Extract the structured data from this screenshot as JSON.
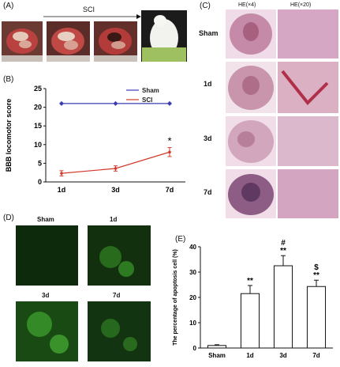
{
  "panels": {
    "A": {
      "label": "(A)",
      "arrow_label": "SCI"
    },
    "B": {
      "label": "(B)"
    },
    "C": {
      "label": "(C)",
      "col_headers": [
        "HE(×4)",
        "HE(×20)"
      ],
      "rows": [
        "Sham",
        "1d",
        "3d",
        "7d"
      ]
    },
    "D": {
      "label": "(D)",
      "tiles": [
        "Sham",
        "1d",
        "3d",
        "7d"
      ]
    },
    "E": {
      "label": "(E)"
    }
  },
  "chart_data": [
    {
      "type": "line",
      "ylabel": "BBB locomotor score",
      "categories": [
        "1d",
        "3d",
        "7d"
      ],
      "yticks": [
        "0",
        "5",
        "10",
        "15",
        "20",
        "25"
      ],
      "ylim": [
        0,
        25
      ],
      "legend_placement": "top-right",
      "series": [
        {
          "name": "Sham",
          "values": [
            21,
            21,
            21
          ],
          "color": "#3b3bb0"
        },
        {
          "name": "SCI",
          "values": [
            2.3,
            3.6,
            8.0
          ],
          "errors": [
            0.7,
            0.7,
            1.2
          ],
          "color": "#d23a2a"
        }
      ],
      "annotations": [
        {
          "category": "7d",
          "text": "*"
        }
      ]
    },
    {
      "type": "bar",
      "ylabel": "The percentage of apoptosis cell (%)",
      "categories": [
        "Sham",
        "1d",
        "3d",
        "7d"
      ],
      "values": [
        1.0,
        21.5,
        32.5,
        24.3
      ],
      "errors": [
        0.3,
        3.2,
        4.0,
        2.5
      ],
      "yticks": [
        "0",
        "10",
        "20",
        "30",
        "40"
      ],
      "ylim": [
        0,
        40
      ],
      "annotations": [
        {
          "category": "1d",
          "text": [
            "**"
          ]
        },
        {
          "category": "3d",
          "text": [
            "#",
            "**"
          ]
        },
        {
          "category": "7d",
          "text": [
            "$",
            "**"
          ]
        }
      ]
    }
  ]
}
